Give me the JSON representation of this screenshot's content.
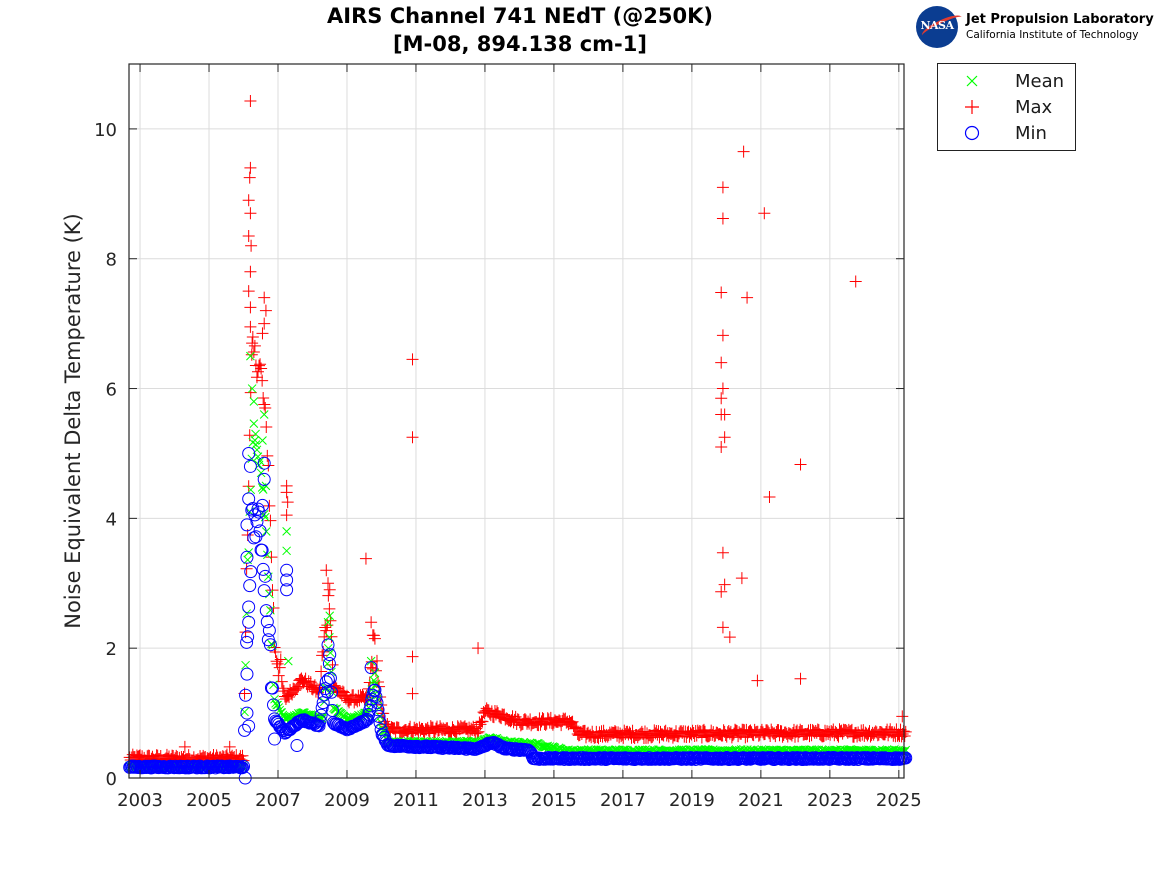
{
  "logo": {
    "agency": "NASA",
    "line1": "Jet Propulsion Laboratory",
    "line2": "California Institute of Technology"
  },
  "chart_data": {
    "type": "scatter",
    "title": "AIRS Channel 741 NEdT (@250K)",
    "subtitle": "[M-08, 894.138 cm-1]",
    "xlabel": "",
    "ylabel": "Noise Equivalent Delta Temperature (K)",
    "xlim": [
      2002.68,
      2025.15
    ],
    "ylim": [
      0,
      11
    ],
    "xticks": [
      2003,
      2005,
      2007,
      2009,
      2011,
      2013,
      2015,
      2017,
      2019,
      2021,
      2023,
      2025
    ],
    "xtick_labels": [
      "2003",
      "2005",
      "2007",
      "2009",
      "2011",
      "2013",
      "2015",
      "2017",
      "2019",
      "2021",
      "2023",
      "2025"
    ],
    "yticks": [
      0,
      2,
      4,
      6,
      8,
      10
    ],
    "ytick_labels": [
      "0",
      "2",
      "4",
      "6",
      "8",
      "10"
    ],
    "grid": true,
    "legend": {
      "placement": "outside-top-right",
      "entries": [
        "Mean",
        "Max",
        "Min"
      ]
    },
    "series": [
      {
        "name": "Mean",
        "marker": "x",
        "color": "#00ff00",
        "baseline": [
          [
            2002.7,
            0.18
          ],
          [
            2006.0,
            0.18
          ],
          [
            2006.1,
            3.0
          ],
          [
            2006.3,
            5.5
          ],
          [
            2006.5,
            4.8
          ],
          [
            2006.7,
            3.5
          ],
          [
            2006.9,
            1.2
          ],
          [
            2007.2,
            0.9
          ],
          [
            2007.7,
            1.0
          ],
          [
            2008.3,
            0.9
          ],
          [
            2008.5,
            2.2
          ],
          [
            2008.6,
            1.1
          ],
          [
            2009.0,
            0.9
          ],
          [
            2009.6,
            1.0
          ],
          [
            2009.8,
            1.6
          ],
          [
            2010.0,
            0.8
          ],
          [
            2010.2,
            0.55
          ],
          [
            2012.8,
            0.55
          ],
          [
            2013.2,
            0.62
          ],
          [
            2013.6,
            0.55
          ],
          [
            2014.5,
            0.52
          ],
          [
            2015.4,
            0.42
          ],
          [
            2025.2,
            0.42
          ]
        ],
        "points": [
          [
            2006.2,
            6.5
          ],
          [
            2006.25,
            6.0
          ],
          [
            2006.3,
            5.8
          ],
          [
            2006.35,
            5.3
          ],
          [
            2006.55,
            5.2
          ],
          [
            2006.6,
            5.6
          ],
          [
            2006.65,
            4.5
          ],
          [
            2007.25,
            3.8
          ],
          [
            2007.25,
            3.5
          ],
          [
            2007.3,
            1.8
          ],
          [
            2008.45,
            2.4
          ],
          [
            2008.5,
            2.5
          ],
          [
            2009.7,
            1.8
          ]
        ]
      },
      {
        "name": "Max",
        "marker": "+",
        "color": "#ff0000",
        "baseline": [
          [
            2002.7,
            0.28
          ],
          [
            2006.0,
            0.28
          ],
          [
            2006.1,
            3.5
          ],
          [
            2006.25,
            6.5
          ],
          [
            2006.5,
            6.2
          ],
          [
            2006.7,
            5.0
          ],
          [
            2006.9,
            2.0
          ],
          [
            2007.2,
            1.2
          ],
          [
            2007.7,
            1.5
          ],
          [
            2008.2,
            1.3
          ],
          [
            2008.5,
            2.8
          ],
          [
            2008.6,
            1.4
          ],
          [
            2009.0,
            1.2
          ],
          [
            2009.6,
            1.2
          ],
          [
            2009.8,
            2.0
          ],
          [
            2010.0,
            1.0
          ],
          [
            2010.2,
            0.72
          ],
          [
            2012.8,
            0.72
          ],
          [
            2013.0,
            1.0
          ],
          [
            2013.5,
            0.95
          ],
          [
            2014.0,
            0.85
          ],
          [
            2015.5,
            0.85
          ],
          [
            2015.7,
            0.65
          ],
          [
            2025.2,
            0.68
          ]
        ],
        "points": [
          [
            2003.0,
            0.35
          ],
          [
            2004.3,
            0.48
          ],
          [
            2005.6,
            0.48
          ],
          [
            2006.2,
            10.43
          ],
          [
            2006.2,
            9.4
          ],
          [
            2006.18,
            9.25
          ],
          [
            2006.15,
            8.9
          ],
          [
            2006.2,
            8.7
          ],
          [
            2006.15,
            8.35
          ],
          [
            2006.22,
            8.2
          ],
          [
            2006.2,
            7.8
          ],
          [
            2006.15,
            7.5
          ],
          [
            2006.2,
            7.25
          ],
          [
            2006.2,
            6.95
          ],
          [
            2006.25,
            6.7
          ],
          [
            2006.6,
            7.4
          ],
          [
            2006.65,
            7.2
          ],
          [
            2006.6,
            7.0
          ],
          [
            2006.55,
            6.85
          ],
          [
            2007.25,
            4.5
          ],
          [
            2007.25,
            4.4
          ],
          [
            2007.28,
            4.25
          ],
          [
            2007.25,
            4.05
          ],
          [
            2008.4,
            3.2
          ],
          [
            2008.45,
            3.0
          ],
          [
            2008.5,
            2.9
          ],
          [
            2009.55,
            3.38
          ],
          [
            2009.7,
            2.4
          ],
          [
            2009.75,
            2.2
          ],
          [
            2010.9,
            6.45
          ],
          [
            2010.9,
            5.25
          ],
          [
            2010.9,
            1.87
          ],
          [
            2010.9,
            1.3
          ],
          [
            2012.8,
            2.0
          ],
          [
            2019.9,
            9.1
          ],
          [
            2019.9,
            8.62
          ],
          [
            2019.85,
            7.48
          ],
          [
            2019.9,
            6.82
          ],
          [
            2019.85,
            6.4
          ],
          [
            2019.9,
            6.0
          ],
          [
            2019.85,
            5.85
          ],
          [
            2019.85,
            5.6
          ],
          [
            2019.95,
            5.6
          ],
          [
            2019.85,
            5.1
          ],
          [
            2019.95,
            5.25
          ],
          [
            2019.9,
            3.47
          ],
          [
            2019.95,
            2.98
          ],
          [
            2019.85,
            2.87
          ],
          [
            2019.9,
            2.32
          ],
          [
            2020.1,
            2.17
          ],
          [
            2020.5,
            9.65
          ],
          [
            2020.6,
            7.4
          ],
          [
            2020.45,
            3.08
          ],
          [
            2021.1,
            8.7
          ],
          [
            2021.25,
            4.33
          ],
          [
            2020.9,
            1.5
          ],
          [
            2022.15,
            4.83
          ],
          [
            2022.15,
            1.53
          ],
          [
            2023.75,
            7.65
          ],
          [
            2025.1,
            0.95
          ]
        ]
      },
      {
        "name": "Min",
        "marker": "o",
        "color": "#0000ff",
        "baseline": [
          [
            2002.7,
            0.17
          ],
          [
            2006.0,
            0.17
          ],
          [
            2006.1,
            2.0
          ],
          [
            2006.25,
            4.0
          ],
          [
            2006.5,
            3.8
          ],
          [
            2006.7,
            2.5
          ],
          [
            2006.9,
            0.9
          ],
          [
            2007.2,
            0.7
          ],
          [
            2007.7,
            0.9
          ],
          [
            2008.2,
            0.8
          ],
          [
            2008.5,
            1.8
          ],
          [
            2008.6,
            0.85
          ],
          [
            2009.0,
            0.75
          ],
          [
            2009.6,
            0.9
          ],
          [
            2009.8,
            1.4
          ],
          [
            2010.0,
            0.7
          ],
          [
            2010.2,
            0.5
          ],
          [
            2012.8,
            0.45
          ],
          [
            2013.2,
            0.55
          ],
          [
            2013.6,
            0.45
          ],
          [
            2014.3,
            0.43
          ],
          [
            2014.4,
            0.3
          ],
          [
            2025.2,
            0.3
          ]
        ],
        "points": [
          [
            2006.05,
            0.0
          ],
          [
            2006.15,
            5.0
          ],
          [
            2006.2,
            4.8
          ],
          [
            2006.15,
            4.3
          ],
          [
            2006.1,
            3.9
          ],
          [
            2006.1,
            3.4
          ],
          [
            2006.15,
            2.4
          ],
          [
            2006.1,
            1.6
          ],
          [
            2006.1,
            1.0
          ],
          [
            2006.15,
            0.8
          ],
          [
            2006.6,
            4.85
          ],
          [
            2006.6,
            4.6
          ],
          [
            2006.55,
            4.2
          ],
          [
            2007.25,
            3.2
          ],
          [
            2007.25,
            3.05
          ],
          [
            2007.25,
            2.9
          ],
          [
            2008.45,
            2.05
          ],
          [
            2008.5,
            1.9
          ],
          [
            2009.7,
            1.7
          ],
          [
            2007.55,
            0.5
          ],
          [
            2006.9,
            0.6
          ]
        ]
      }
    ]
  }
}
